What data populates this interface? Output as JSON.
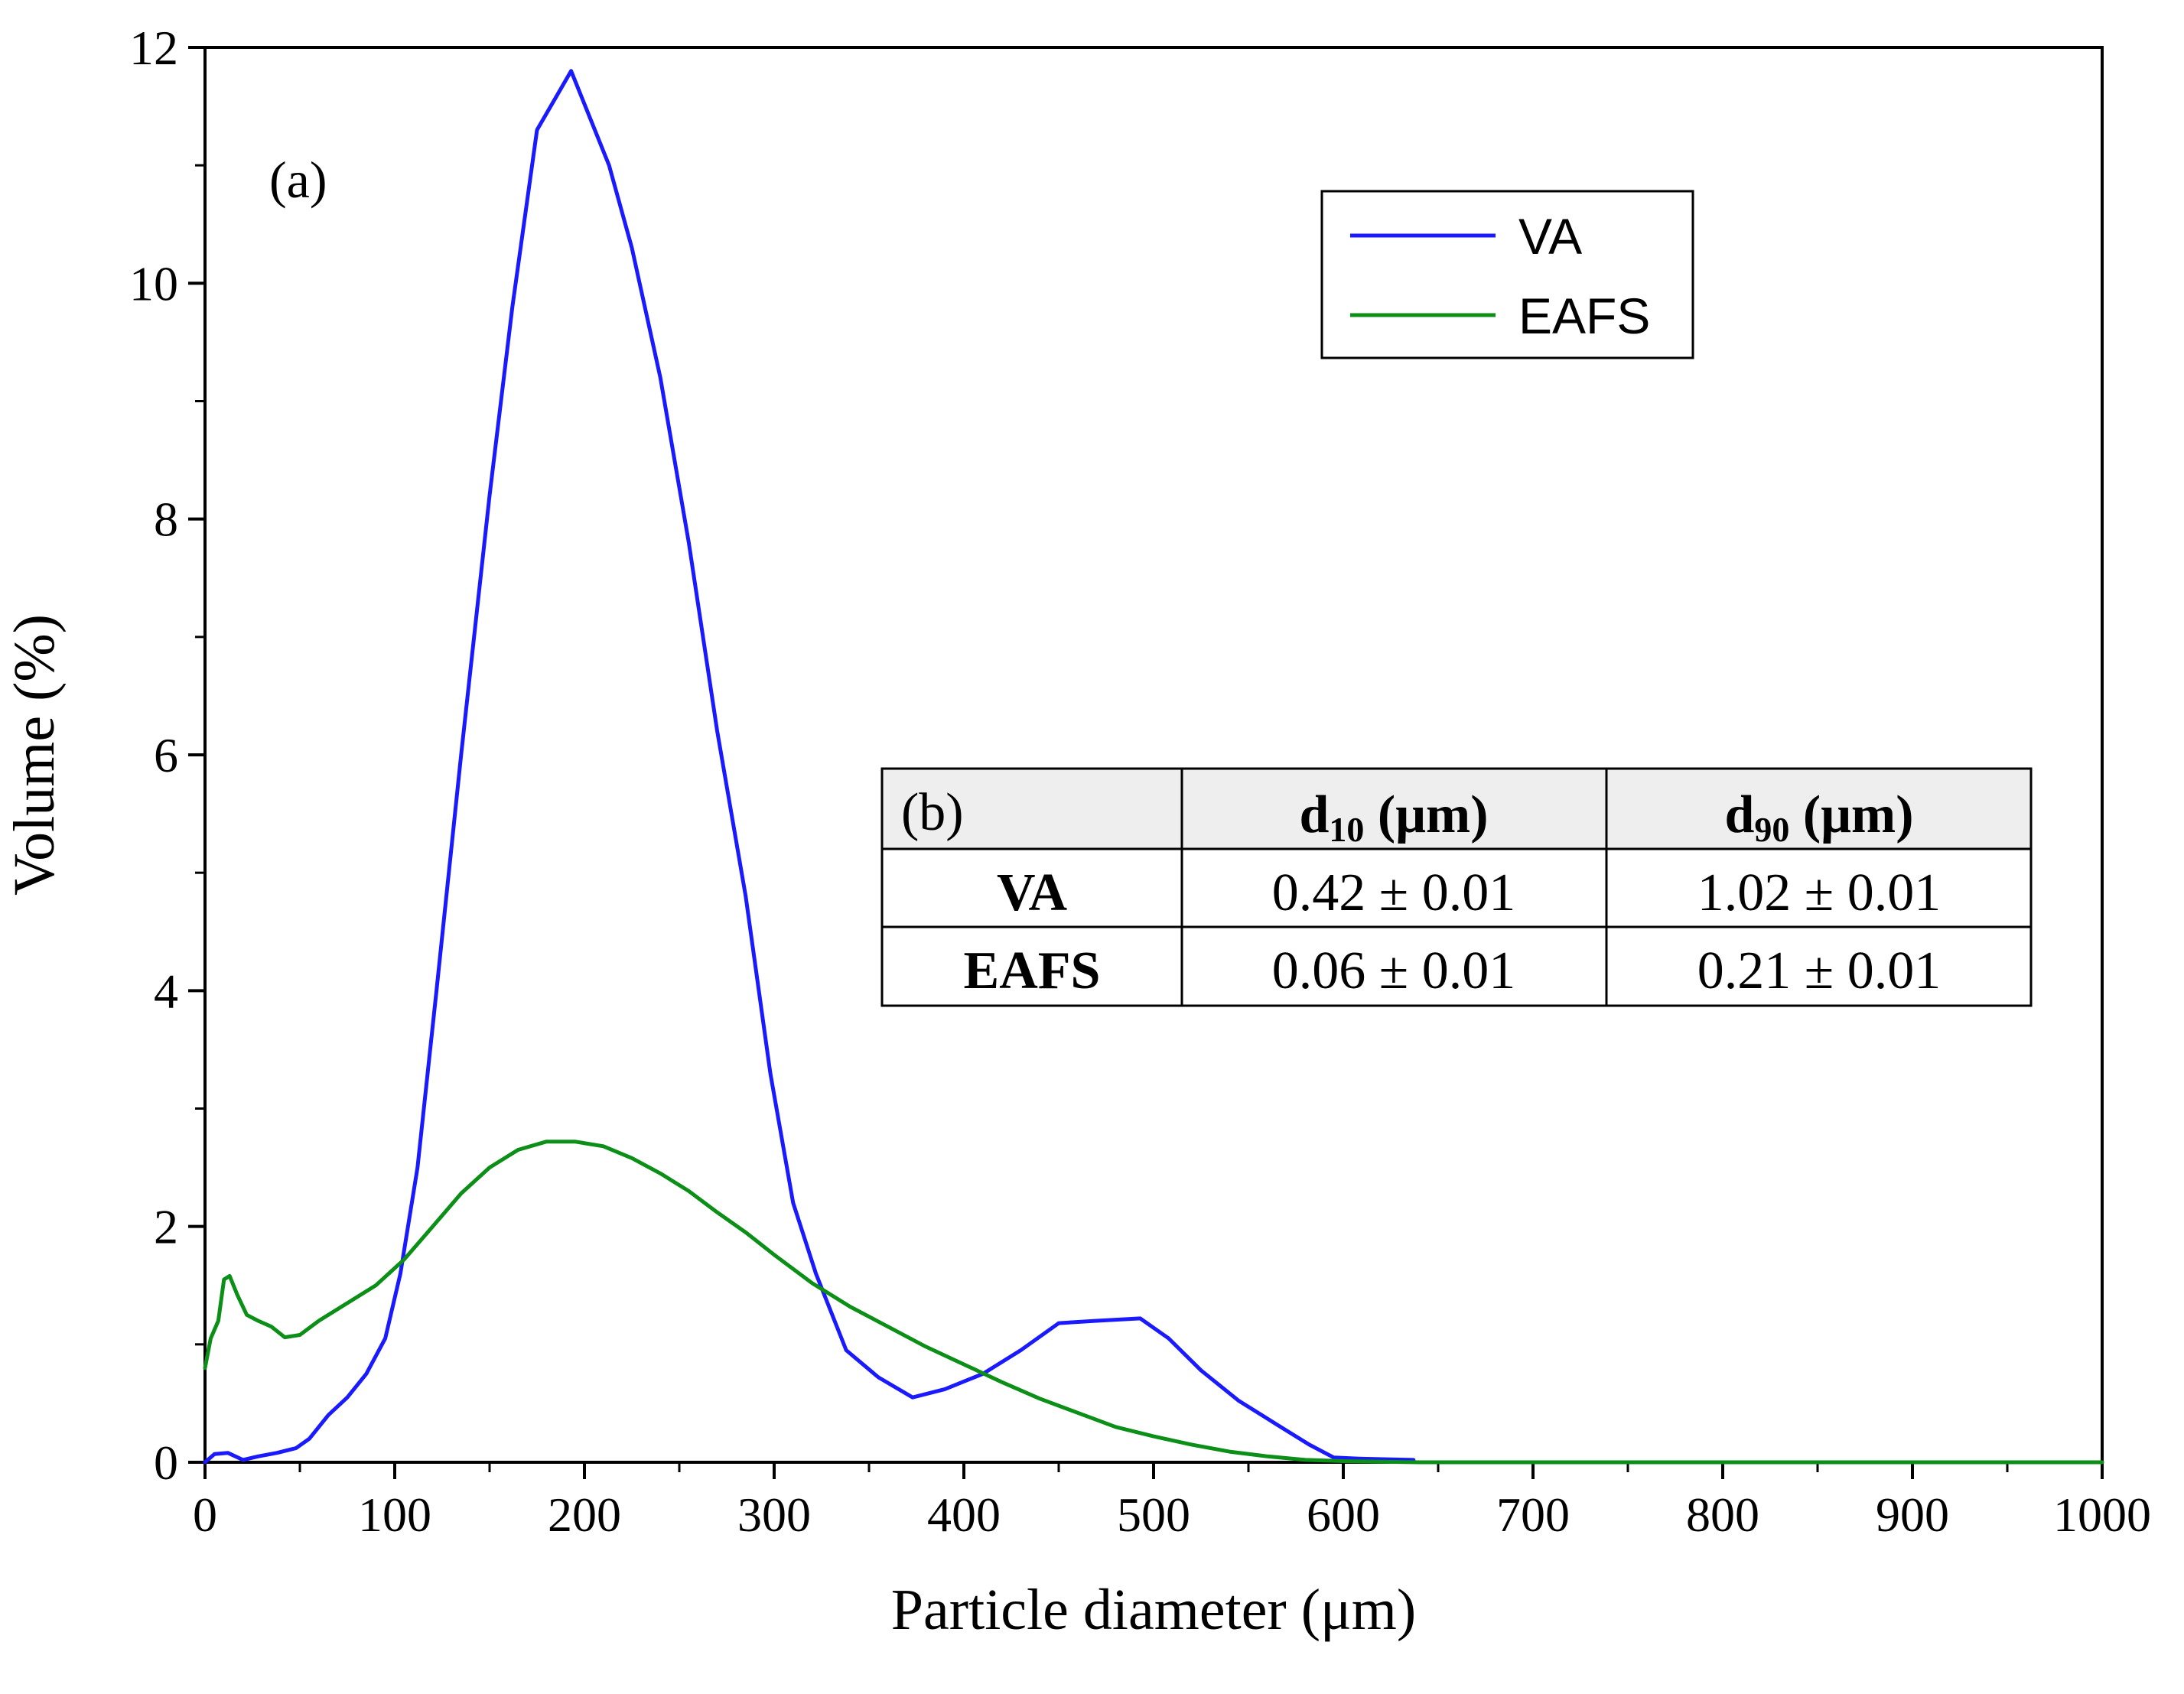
{
  "chart_data": {
    "type": "line",
    "panel_label": "(a)",
    "xlabel": "Particle diameter (μm)",
    "ylabel": "Volume (%)",
    "xlim": [
      0,
      1000
    ],
    "ylim": [
      0,
      12
    ],
    "x_ticks": [
      0,
      100,
      200,
      300,
      400,
      500,
      600,
      700,
      800,
      900,
      1000
    ],
    "y_ticks": [
      0,
      2,
      4,
      6,
      8,
      10,
      12
    ],
    "legend_position": "top-right",
    "series": [
      {
        "name": "VA",
        "color": "#1a1aff",
        "points": [
          [
            0,
            0
          ],
          [
            5,
            0.07
          ],
          [
            12,
            0.08
          ],
          [
            20,
            0.02
          ],
          [
            28,
            0.05
          ],
          [
            38,
            0.08
          ],
          [
            48,
            0.12
          ],
          [
            55,
            0.2
          ],
          [
            65,
            0.4
          ],
          [
            75,
            0.55
          ],
          [
            85,
            0.75
          ],
          [
            95,
            1.05
          ],
          [
            103,
            1.6
          ],
          [
            112,
            2.5
          ],
          [
            122,
            4.0
          ],
          [
            135,
            6.0
          ],
          [
            150,
            8.2
          ],
          [
            162,
            9.8
          ],
          [
            175,
            11.3
          ],
          [
            193,
            11.8
          ],
          [
            213,
            11.0
          ],
          [
            225,
            10.3
          ],
          [
            240,
            9.2
          ],
          [
            255,
            7.8
          ],
          [
            270,
            6.2
          ],
          [
            285,
            4.8
          ],
          [
            298,
            3.3
          ],
          [
            310,
            2.2
          ],
          [
            322,
            1.6
          ],
          [
            338,
            0.95
          ],
          [
            355,
            0.72
          ],
          [
            373,
            0.55
          ],
          [
            390,
            0.62
          ],
          [
            410,
            0.75
          ],
          [
            430,
            0.95
          ],
          [
            450,
            1.18
          ],
          [
            470,
            1.2
          ],
          [
            493,
            1.22
          ],
          [
            508,
            1.05
          ],
          [
            525,
            0.78
          ],
          [
            545,
            0.52
          ],
          [
            565,
            0.32
          ],
          [
            582,
            0.15
          ],
          [
            595,
            0.04
          ],
          [
            610,
            0.03
          ],
          [
            637,
            0.02
          ]
        ]
      },
      {
        "name": "EAFS",
        "color": "#0b8f17",
        "points": [
          [
            0,
            0.8
          ],
          [
            3,
            1.05
          ],
          [
            7,
            1.2
          ],
          [
            10,
            1.55
          ],
          [
            13,
            1.58
          ],
          [
            17,
            1.42
          ],
          [
            22,
            1.25
          ],
          [
            28,
            1.2
          ],
          [
            35,
            1.15
          ],
          [
            42,
            1.06
          ],
          [
            50,
            1.08
          ],
          [
            60,
            1.2
          ],
          [
            75,
            1.35
          ],
          [
            90,
            1.5
          ],
          [
            105,
            1.72
          ],
          [
            120,
            2.0
          ],
          [
            135,
            2.28
          ],
          [
            150,
            2.5
          ],
          [
            165,
            2.65
          ],
          [
            180,
            2.72
          ],
          [
            195,
            2.72
          ],
          [
            210,
            2.68
          ],
          [
            225,
            2.58
          ],
          [
            240,
            2.45
          ],
          [
            255,
            2.3
          ],
          [
            270,
            2.12
          ],
          [
            285,
            1.95
          ],
          [
            300,
            1.76
          ],
          [
            320,
            1.52
          ],
          [
            340,
            1.32
          ],
          [
            360,
            1.15
          ],
          [
            380,
            0.98
          ],
          [
            400,
            0.83
          ],
          [
            420,
            0.68
          ],
          [
            440,
            0.54
          ],
          [
            460,
            0.42
          ],
          [
            480,
            0.3
          ],
          [
            500,
            0.22
          ],
          [
            520,
            0.15
          ],
          [
            540,
            0.09
          ],
          [
            560,
            0.05
          ],
          [
            580,
            0.02
          ],
          [
            600,
            0.01
          ],
          [
            640,
            0
          ],
          [
            700,
            0
          ],
          [
            800,
            0
          ],
          [
            900,
            0
          ],
          [
            1000,
            0
          ]
        ]
      }
    ],
    "inset_table": {
      "label": "(b)",
      "columns": [
        "d10 (μm)",
        "d90 (μm)"
      ],
      "rows": [
        {
          "name": "VA",
          "values": [
            "0.42 ± 0.01",
            "1.02 ± 0.01"
          ]
        },
        {
          "name": "EAFS",
          "values": [
            "0.06 ± 0.01",
            "0.21 ± 0.01"
          ]
        }
      ]
    }
  }
}
